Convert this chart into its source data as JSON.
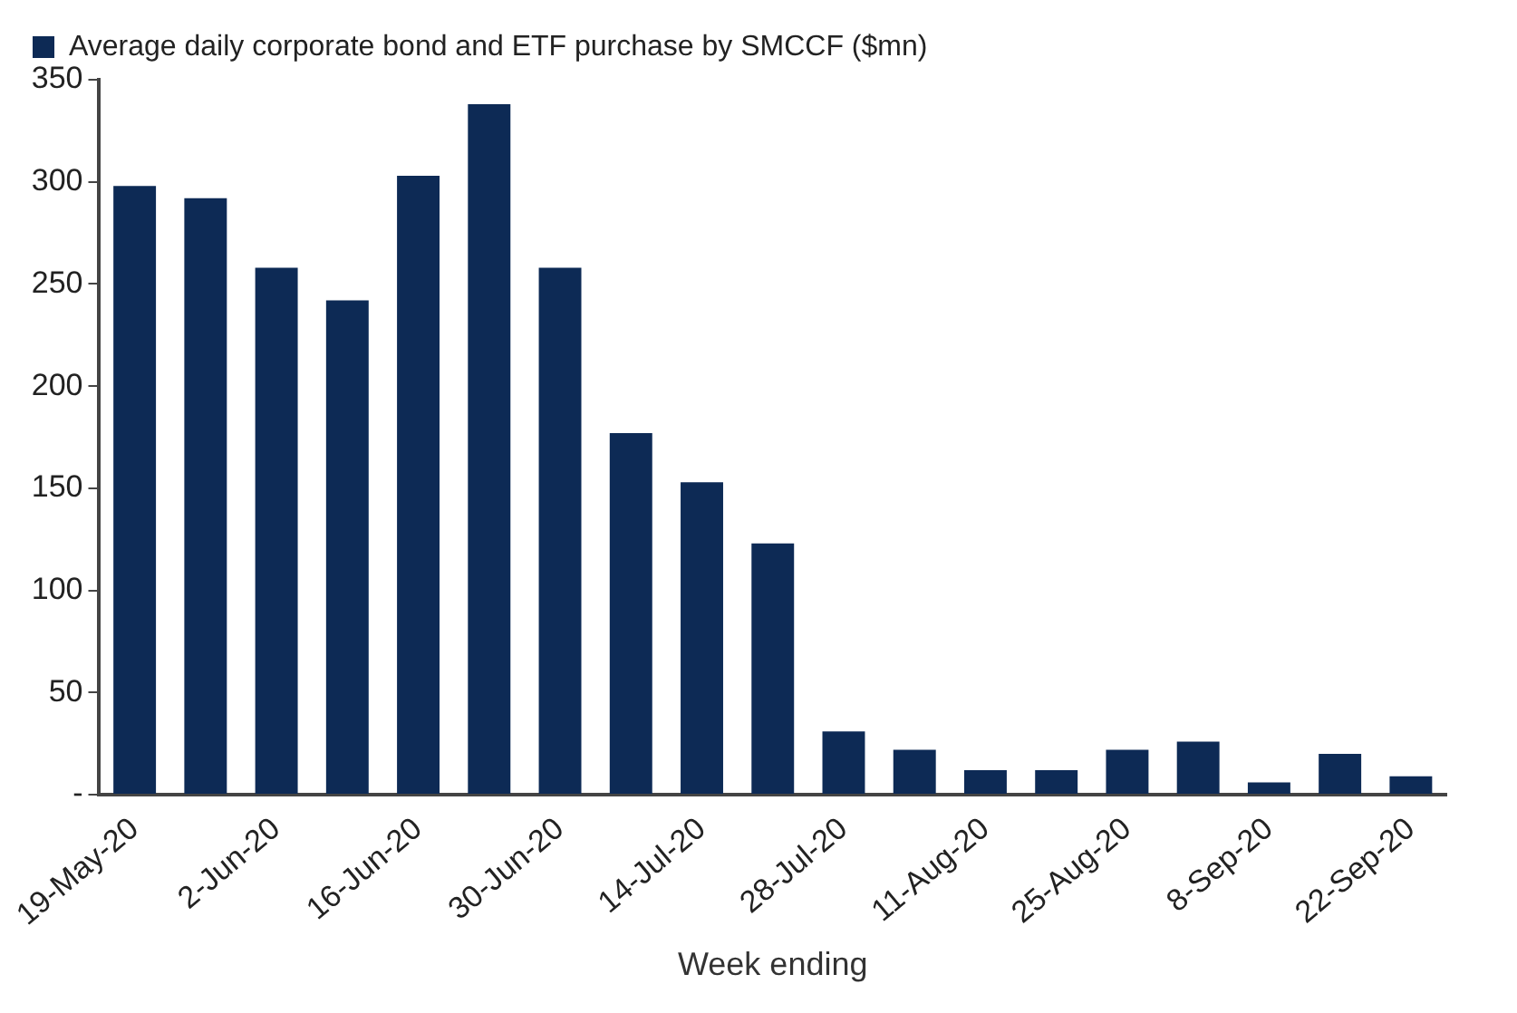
{
  "chart_data": {
    "type": "bar",
    "categories": [
      "19-May-20",
      null,
      "2-Jun-20",
      null,
      "16-Jun-20",
      null,
      "30-Jun-20",
      null,
      "14-Jul-20",
      null,
      "28-Jul-20",
      null,
      "11-Aug-20",
      null,
      "25-Aug-20",
      null,
      "8-Sep-20",
      null,
      "22-Sep-20"
    ],
    "series": [
      {
        "name": "Average daily corporate bond and ETF purchase by SMCCF ($mn)",
        "color": "#0d2a55",
        "values": [
          298,
          292,
          258,
          242,
          303,
          338,
          258,
          177,
          153,
          123,
          31,
          22,
          12,
          12,
          22,
          26,
          6,
          20,
          9
        ]
      }
    ],
    "xlabel": "Week ending",
    "ylim": [
      0,
      350
    ],
    "yticks": [
      {
        "value": 0,
        "label": "-"
      },
      50,
      100,
      150,
      200,
      250,
      300,
      350
    ],
    "grid": false,
    "legend": "top"
  }
}
